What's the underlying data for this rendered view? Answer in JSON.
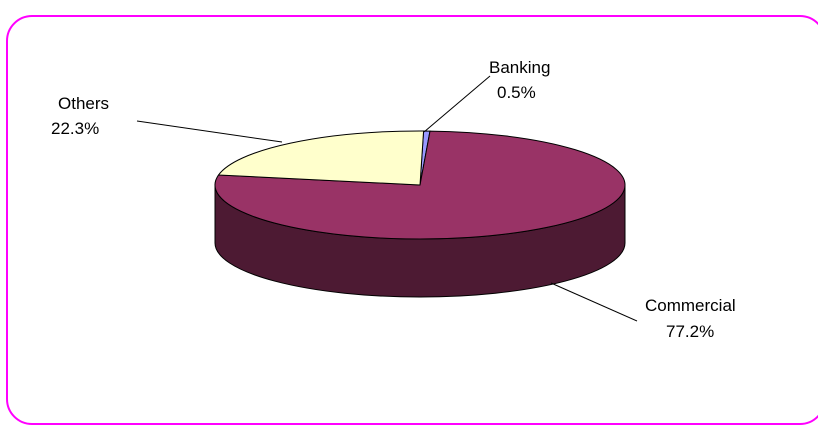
{
  "chart_data": {
    "type": "pie",
    "style": "3d",
    "title": "",
    "categories": [
      "Banking",
      "Commercial",
      "Others"
    ],
    "values": [
      0.5,
      77.2,
      22.3
    ],
    "value_labels": [
      "0.5%",
      "77.2%",
      "22.3%"
    ],
    "colors": [
      "#9999ff",
      "#993366",
      "#ffffcc"
    ],
    "legend": false
  },
  "colors": {
    "border": "#ff00ff",
    "background": "#ffffff"
  }
}
